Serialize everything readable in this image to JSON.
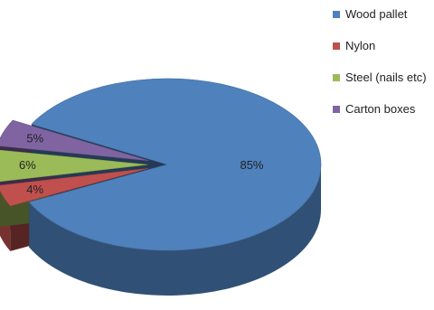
{
  "chart_data": {
    "type": "pie",
    "three_d": true,
    "exploded": true,
    "legend_position": "top-right",
    "slices": [
      {
        "name": "Wood pallet",
        "value": 85,
        "label": "85%",
        "color": "#4f81bd"
      },
      {
        "name": "Nylon",
        "value": 4,
        "label": "4%",
        "color": "#c0504d"
      },
      {
        "name": "Steel (nails etc)",
        "value": 6,
        "label": "6%",
        "color": "#9bbb59"
      },
      {
        "name": "Carton boxes",
        "value": 5,
        "label": "5%",
        "color": "#8064a2"
      }
    ]
  }
}
